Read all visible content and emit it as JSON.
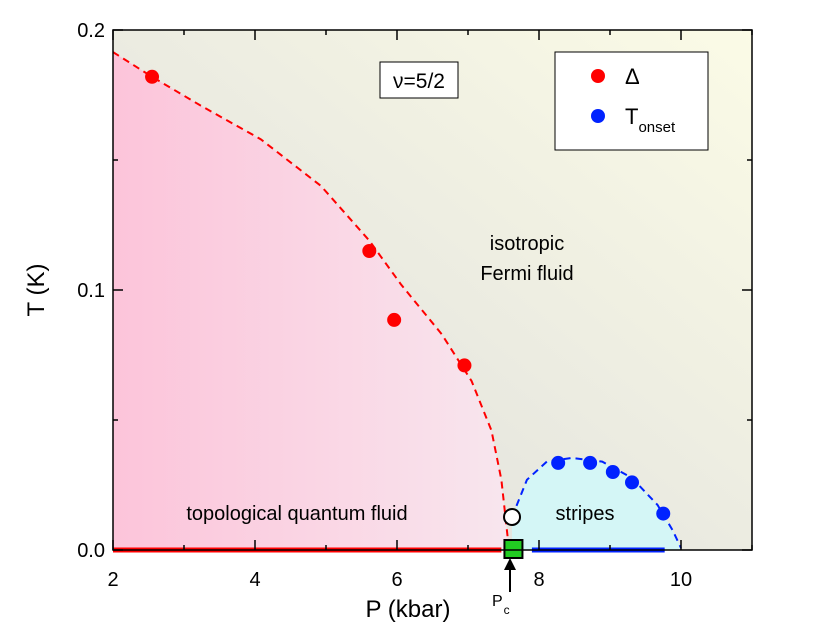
{
  "chart_data": {
    "type": "scatter",
    "xlabel": "P (kbar)",
    "ylabel": "T (K)",
    "xlim": [
      2,
      11
    ],
    "ylim": [
      0,
      0.2
    ],
    "xticks": [
      2,
      4,
      6,
      8,
      10
    ],
    "yticks": [
      {
        "value": 0,
        "label": "0.0"
      },
      0.1,
      0.2
    ],
    "xminor": [
      3,
      5,
      7,
      9,
      11
    ],
    "yminor": [
      0.05,
      0.15
    ],
    "legend": "upper right",
    "series": [
      {
        "name": "Δ",
        "color": "#ff0000",
        "x": [
          2.55,
          5.61,
          5.96,
          6.95
        ],
        "values": [
          0.182,
          0.115,
          0.0885,
          0.071
        ]
      },
      {
        "name": "T",
        "subscript": "onset",
        "color": "#0022ff",
        "x": [
          8.27,
          8.72,
          9.04,
          9.31,
          9.75
        ],
        "values": [
          0.0335,
          0.0335,
          0.03,
          0.026,
          0.014
        ]
      }
    ],
    "curves": [
      {
        "color": "#ff0000",
        "fill": "#fcc8dc",
        "x": [
          2,
          2.55,
          3.23,
          4.08,
          4.93,
          5.61,
          6.06,
          6.63,
          7.05,
          7.33,
          7.47,
          7.54,
          7.57
        ],
        "y": [
          0.1915,
          0.182,
          0.171,
          0.158,
          0.14,
          0.119,
          0.102,
          0.083,
          0.065,
          0.046,
          0.027,
          0.0096,
          0.002
        ]
      },
      {
        "color": "#0022ff",
        "fill": "#d4f6f6",
        "x": [
          7.62,
          7.83,
          8.11,
          8.46,
          8.89,
          9.31,
          9.67,
          9.88,
          10.0
        ],
        "y": [
          0.0127,
          0.027,
          0.034,
          0.0354,
          0.034,
          0.0277,
          0.0173,
          0.0077,
          0.0008
        ]
      }
    ],
    "phase_lines": [
      {
        "color": "#ff0000",
        "x": [
          2,
          7.47
        ],
        "y": [
          0,
          0
        ]
      },
      {
        "color": "#0022ff",
        "x": [
          7.9,
          9.77
        ],
        "y": [
          0,
          0
        ]
      }
    ],
    "critical_points": [
      {
        "marker": "open-circle",
        "x": 7.62,
        "y": 0.0127
      },
      {
        "marker": "green-square",
        "x": 7.64,
        "y": 0
      }
    ],
    "annotations": {
      "filling": "ν=5/2",
      "isotropic_1": "isotropic",
      "isotropic_2": "Fermi fluid",
      "topological": "topological quantum fluid",
      "stripes": "stripes",
      "pc": "P",
      "pc_sub": "c"
    }
  }
}
